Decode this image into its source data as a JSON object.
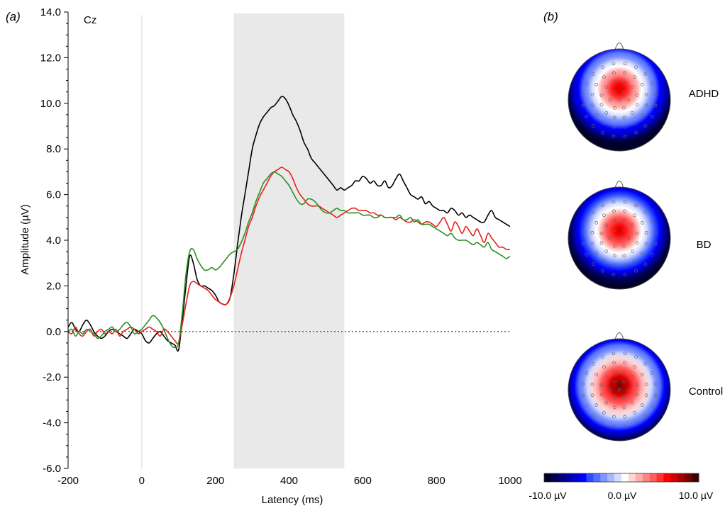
{
  "panels": {
    "a": "(a)",
    "b": "(b)"
  },
  "channel": "Cz",
  "chart_data": {
    "type": "line",
    "xlabel": "Latency (ms)",
    "ylabel": "Amplitude (µV)",
    "xlim": [
      -200,
      1000
    ],
    "ylim": [
      -6,
      14
    ],
    "xticks": [
      -200,
      0,
      200,
      400,
      600,
      800,
      1000
    ],
    "xtick_labels": [
      "-200",
      "0",
      "200",
      "400",
      "600",
      "800",
      "1000"
    ],
    "yticks": [
      14,
      12,
      10,
      8,
      6,
      4,
      2,
      0,
      -2,
      -4,
      -6
    ],
    "ytick_labels": [
      "14.0",
      "12.0",
      "10.0",
      "8.0",
      "6.0",
      "4.0",
      "2.0",
      "0.0",
      "-2.0",
      "-4.0",
      "-6.0"
    ],
    "shaded_window": [
      250,
      550
    ],
    "zero_line": true,
    "grid": false,
    "series": [
      {
        "color": "#000000",
        "x": [
          -200,
          -190,
          -180,
          -170,
          -160,
          -150,
          -140,
          -130,
          -120,
          -110,
          -100,
          -90,
          -80,
          -70,
          -60,
          -50,
          -40,
          -30,
          -20,
          -10,
          0,
          10,
          20,
          30,
          40,
          50,
          60,
          70,
          80,
          90,
          100,
          110,
          120,
          130,
          140,
          150,
          160,
          170,
          180,
          190,
          200,
          210,
          220,
          230,
          240,
          250,
          260,
          270,
          280,
          290,
          300,
          310,
          320,
          330,
          340,
          350,
          360,
          370,
          380,
          390,
          400,
          410,
          420,
          430,
          440,
          450,
          460,
          470,
          480,
          490,
          500,
          510,
          520,
          530,
          540,
          550,
          560,
          570,
          580,
          590,
          600,
          610,
          620,
          630,
          640,
          650,
          660,
          670,
          680,
          690,
          700,
          710,
          720,
          730,
          740,
          750,
          760,
          770,
          780,
          790,
          800,
          810,
          820,
          830,
          840,
          850,
          860,
          870,
          880,
          890,
          900,
          910,
          920,
          930,
          940,
          950,
          960,
          970,
          980,
          990,
          1000
        ],
        "y": [
          0.2,
          0.4,
          0.1,
          0.0,
          0.3,
          0.5,
          0.3,
          0.0,
          -0.2,
          -0.3,
          -0.2,
          0.0,
          0.1,
          0.0,
          -0.1,
          -0.2,
          -0.3,
          -0.1,
          0.1,
          0.0,
          -0.1,
          -0.4,
          -0.5,
          -0.3,
          -0.1,
          0.0,
          -0.2,
          -0.4,
          -0.5,
          -0.6,
          -0.8,
          0.5,
          2.0,
          3.3,
          3.0,
          2.3,
          2.0,
          2.0,
          1.9,
          1.8,
          1.6,
          1.3,
          1.2,
          1.2,
          1.5,
          2.5,
          3.8,
          5.0,
          6.0,
          7.0,
          8.0,
          8.6,
          9.1,
          9.4,
          9.6,
          9.8,
          9.9,
          10.1,
          10.3,
          10.2,
          9.9,
          9.5,
          9.2,
          8.8,
          8.3,
          8.0,
          7.6,
          7.4,
          7.2,
          7.0,
          6.8,
          6.6,
          6.4,
          6.2,
          6.3,
          6.2,
          6.3,
          6.4,
          6.6,
          6.6,
          6.8,
          6.7,
          6.5,
          6.6,
          6.4,
          6.4,
          6.6,
          6.3,
          6.4,
          6.7,
          6.9,
          6.6,
          6.3,
          6.0,
          5.9,
          5.8,
          5.9,
          5.6,
          5.7,
          5.5,
          5.4,
          5.3,
          5.3,
          5.2,
          5.4,
          5.3,
          5.1,
          5.2,
          5.0,
          5.1,
          5.0,
          4.9,
          4.8,
          4.8,
          5.1,
          5.3,
          5.0,
          4.9,
          4.8,
          4.7,
          4.6
        ]
      },
      {
        "color": "#e8201e",
        "x": [
          -200,
          -190,
          -180,
          -170,
          -160,
          -150,
          -140,
          -130,
          -120,
          -110,
          -100,
          -90,
          -80,
          -70,
          -60,
          -50,
          -40,
          -30,
          -20,
          -10,
          0,
          10,
          20,
          30,
          40,
          50,
          60,
          70,
          80,
          90,
          100,
          110,
          120,
          130,
          140,
          150,
          160,
          170,
          180,
          190,
          200,
          210,
          220,
          230,
          240,
          250,
          260,
          270,
          280,
          290,
          300,
          310,
          320,
          330,
          340,
          350,
          360,
          370,
          380,
          390,
          400,
          410,
          420,
          430,
          440,
          450,
          460,
          470,
          480,
          490,
          500,
          510,
          520,
          530,
          540,
          550,
          560,
          570,
          580,
          590,
          600,
          610,
          620,
          630,
          640,
          650,
          660,
          670,
          680,
          690,
          700,
          710,
          720,
          730,
          740,
          750,
          760,
          770,
          780,
          790,
          800,
          810,
          820,
          830,
          840,
          850,
          860,
          870,
          880,
          890,
          900,
          910,
          920,
          930,
          940,
          950,
          960,
          970,
          980,
          990,
          1000
        ],
        "y": [
          0.0,
          -0.1,
          0.2,
          -0.1,
          -0.2,
          0.0,
          0.1,
          -0.2,
          0.0,
          0.1,
          -0.1,
          0.0,
          -0.1,
          0.1,
          -0.2,
          0.0,
          0.1,
          0.2,
          0.1,
          -0.1,
          0.0,
          0.1,
          0.2,
          0.1,
          0.0,
          -0.2,
          0.1,
          0.0,
          -0.2,
          -0.4,
          -0.5,
          0.3,
          1.2,
          2.0,
          2.2,
          2.1,
          2.0,
          1.9,
          1.8,
          1.6,
          1.4,
          1.3,
          1.2,
          1.2,
          1.5,
          2.0,
          2.7,
          3.4,
          4.0,
          4.6,
          5.0,
          5.5,
          5.9,
          6.2,
          6.5,
          6.8,
          7.0,
          7.1,
          7.2,
          7.1,
          7.0,
          6.7,
          6.3,
          6.0,
          5.8,
          5.6,
          5.5,
          5.5,
          5.5,
          5.4,
          5.3,
          5.2,
          5.1,
          5.0,
          5.1,
          5.2,
          5.3,
          5.4,
          5.4,
          5.3,
          5.3,
          5.3,
          5.2,
          5.2,
          5.1,
          5.1,
          5.0,
          5.0,
          5.0,
          4.9,
          5.0,
          4.9,
          4.8,
          4.8,
          4.9,
          4.8,
          4.7,
          4.8,
          4.8,
          4.7,
          4.6,
          4.8,
          5.0,
          4.7,
          4.4,
          4.8,
          4.6,
          4.3,
          4.6,
          4.4,
          4.2,
          4.5,
          4.2,
          3.9,
          4.3,
          4.1,
          3.9,
          3.7,
          3.7,
          3.6,
          3.6
        ]
      },
      {
        "color": "#2a8f23",
        "x": [
          -200,
          -190,
          -180,
          -170,
          -160,
          -150,
          -140,
          -130,
          -120,
          -110,
          -100,
          -90,
          -80,
          -70,
          -60,
          -50,
          -40,
          -30,
          -20,
          -10,
          0,
          10,
          20,
          30,
          40,
          50,
          60,
          70,
          80,
          90,
          100,
          110,
          120,
          130,
          140,
          150,
          160,
          170,
          180,
          190,
          200,
          210,
          220,
          230,
          240,
          250,
          260,
          270,
          280,
          290,
          300,
          310,
          320,
          330,
          340,
          350,
          360,
          370,
          380,
          390,
          400,
          410,
          420,
          430,
          440,
          450,
          460,
          470,
          480,
          490,
          500,
          510,
          520,
          530,
          540,
          550,
          560,
          570,
          580,
          590,
          600,
          610,
          620,
          630,
          640,
          650,
          660,
          670,
          680,
          690,
          700,
          710,
          720,
          730,
          740,
          750,
          760,
          770,
          780,
          790,
          800,
          810,
          820,
          830,
          840,
          850,
          860,
          870,
          880,
          890,
          900,
          910,
          920,
          930,
          940,
          950,
          960,
          970,
          980,
          990,
          1000
        ],
        "y": [
          0.0,
          0.1,
          -0.2,
          0.0,
          -0.1,
          0.1,
          0.0,
          -0.1,
          -0.3,
          -0.2,
          0.0,
          0.1,
          0.2,
          0.0,
          0.1,
          0.3,
          0.4,
          0.2,
          -0.1,
          0.0,
          0.1,
          0.3,
          0.5,
          0.7,
          0.6,
          0.4,
          0.1,
          -0.3,
          -0.6,
          -0.7,
          -0.5,
          0.8,
          2.5,
          3.5,
          3.6,
          3.2,
          2.9,
          2.7,
          2.7,
          2.8,
          2.7,
          2.8,
          3.0,
          3.2,
          3.4,
          3.5,
          3.6,
          3.9,
          4.3,
          4.8,
          5.2,
          5.7,
          6.1,
          6.5,
          6.7,
          6.9,
          7.0,
          6.9,
          6.8,
          6.6,
          6.4,
          6.1,
          5.8,
          5.6,
          5.6,
          5.8,
          5.8,
          5.7,
          5.5,
          5.3,
          5.2,
          5.2,
          5.3,
          5.4,
          5.3,
          5.3,
          5.2,
          5.2,
          5.2,
          5.2,
          5.1,
          5.1,
          5.1,
          5.0,
          5.0,
          5.1,
          5.0,
          5.0,
          5.0,
          5.0,
          5.1,
          4.9,
          4.9,
          5.0,
          4.8,
          4.9,
          4.7,
          4.7,
          4.7,
          4.6,
          4.5,
          4.4,
          4.3,
          4.2,
          4.3,
          4.1,
          4.0,
          4.0,
          4.0,
          3.9,
          3.8,
          3.9,
          3.8,
          3.7,
          3.9,
          3.6,
          3.5,
          3.4,
          3.3,
          3.2,
          3.3
        ]
      }
    ]
  },
  "topomaps": [
    {
      "group": "ADHD",
      "peak_uv": 7.0,
      "peak_dy": -0.22,
      "spread": 0.4
    },
    {
      "group": "BD",
      "peak_uv": 7.5,
      "peak_dy": -0.15,
      "spread": 0.38
    },
    {
      "group": "Control",
      "peak_uv": 9.2,
      "peak_dy": -0.08,
      "spread": 0.42
    }
  ],
  "colorbar": {
    "min_label": "-10.0 µV",
    "mid_label": "0.0 µV",
    "max_label": "10.0 µV",
    "colors": [
      "#00002b",
      "#000050",
      "#00007a",
      "#0000a5",
      "#0000d0",
      "#0000ff",
      "#2a4bff",
      "#5570ff",
      "#8095ff",
      "#aab9ff",
      "#d5dcff",
      "#ffffff",
      "#ffd6d6",
      "#ffadad",
      "#ff8585",
      "#ff5c5c",
      "#ff3333",
      "#ff0000",
      "#d10000",
      "#a30000",
      "#750000",
      "#3d0000"
    ]
  }
}
